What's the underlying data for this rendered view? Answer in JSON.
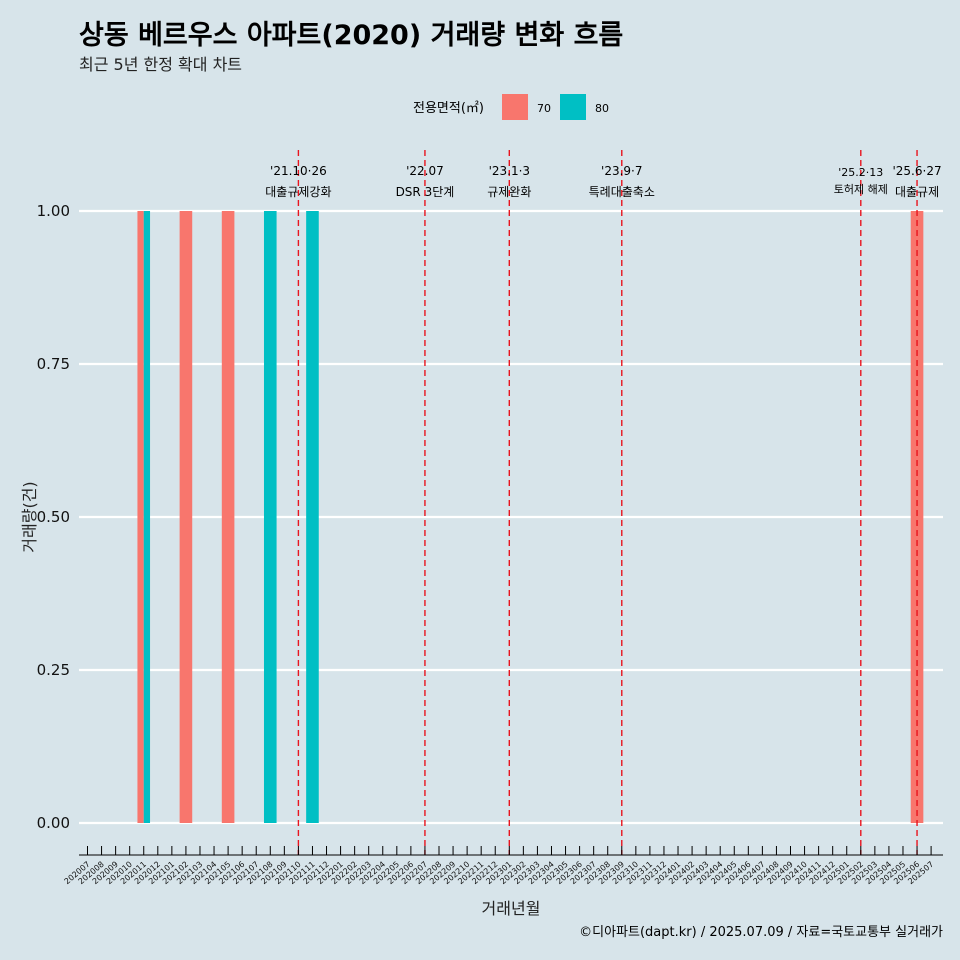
{
  "title": "상동 베르우스 아파트(2020) 거래량 변화 흐름",
  "subtitle": "최근 5년 한정 확대 차트",
  "caption": "©디아파트(dapt.kr) / 2025.07.09 / 자료=국토교통부 실거래가",
  "legend": {
    "title": "전용면적(㎡)",
    "items": [
      {
        "label": "70",
        "color": "#f8766d"
      },
      {
        "label": "80",
        "color": "#00bfc4"
      }
    ]
  },
  "chart_data": {
    "type": "bar",
    "xlabel": "거래년월",
    "ylabel": "거래량(건)",
    "ylim": [
      0,
      1
    ],
    "yticks": [
      "0.00",
      "0.25",
      "0.50",
      "0.75",
      "1.00"
    ],
    "grid": "horizontal",
    "categories": [
      "202007",
      "202008",
      "202009",
      "202010",
      "202011",
      "202012",
      "202101",
      "202102",
      "202103",
      "202104",
      "202105",
      "202106",
      "202107",
      "202108",
      "202109",
      "202110",
      "202111",
      "202112",
      "202201",
      "202202",
      "202203",
      "202204",
      "202205",
      "202206",
      "202207",
      "202208",
      "202209",
      "202210",
      "202211",
      "202212",
      "202301",
      "202302",
      "202303",
      "202304",
      "202305",
      "202306",
      "202307",
      "202308",
      "202309",
      "202310",
      "202311",
      "202312",
      "202401",
      "202402",
      "202403",
      "202404",
      "202405",
      "202406",
      "202407",
      "202408",
      "202409",
      "202410",
      "202411",
      "202412",
      "202501",
      "202502",
      "202503",
      "202504",
      "202505",
      "202506",
      "202507"
    ],
    "series": [
      {
        "name": "70",
        "color": "#f8766d",
        "points": [
          {
            "x": "202011",
            "y": 1
          },
          {
            "x": "202102",
            "y": 1
          },
          {
            "x": "202105",
            "y": 1
          },
          {
            "x": "202506",
            "y": 1
          }
        ]
      },
      {
        "name": "80",
        "color": "#00bfc4",
        "points": [
          {
            "x": "202011",
            "y": 1
          },
          {
            "x": "202108",
            "y": 1
          },
          {
            "x": "202111",
            "y": 1
          }
        ]
      }
    ],
    "annotations": [
      {
        "x": "202110",
        "line1": "'21.10·26",
        "line2": "대출규제강화"
      },
      {
        "x": "202207",
        "line1": "'22.07",
        "line2": "DSR 3단계"
      },
      {
        "x": "202301",
        "line1": "'23.1·3",
        "line2": "규제완화"
      },
      {
        "x": "202309",
        "line1": "'23.9·7",
        "line2": "특례대출축소"
      },
      {
        "x": "202502",
        "line1": "'25.2·13",
        "line2": "토허제 해제"
      },
      {
        "x": "202506",
        "line1": "'25.6·27",
        "line2": "대출규제"
      }
    ]
  }
}
